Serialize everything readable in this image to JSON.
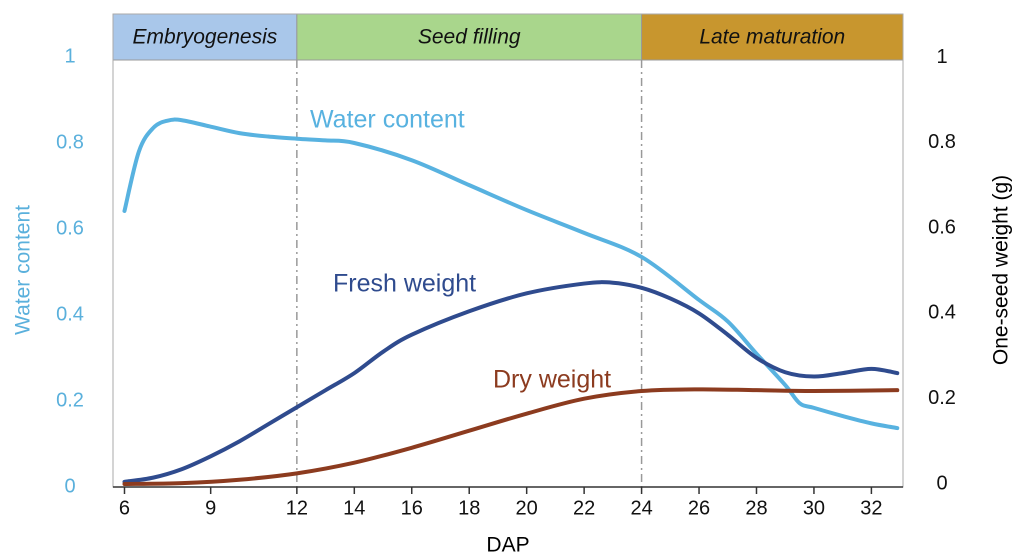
{
  "chart_data": {
    "type": "line",
    "xlabel": "DAP",
    "ylabel": "Water content",
    "y2label": "One-seed weight (g)",
    "xlim": [
      5.6,
      33.1
    ],
    "xticks": [
      6,
      9,
      12,
      14,
      16,
      18,
      20,
      22,
      24,
      26,
      28,
      30,
      32
    ],
    "ylim": [
      0,
      1.1
    ],
    "yticks": [
      0,
      0.2,
      0.4,
      0.6,
      0.8,
      1
    ],
    "y2lim": [
      -0.007,
      1.102
    ],
    "y2ticks": [
      0,
      0.2,
      0.4,
      0.6,
      0.8,
      1
    ],
    "ycolor": "#5ab0dc",
    "phases": [
      {
        "label": "Embryogenesis",
        "start": 5.6,
        "end": 12,
        "color": "#a9c7ea"
      },
      {
        "label": "Seed filling",
        "start": 12,
        "end": 24,
        "color": "#a9d68c"
      },
      {
        "label": "Late maturation",
        "start": 24,
        "end": 33.1,
        "color": "#c8962e"
      }
    ],
    "series": [
      {
        "name": "Water content",
        "color": "#58b2e0",
        "x": [
          6,
          6.5,
          7,
          7.5,
          8,
          9,
          10,
          11,
          12,
          13,
          14,
          16,
          18,
          20,
          22,
          24,
          26,
          27,
          28,
          29,
          29.5,
          30,
          31,
          32,
          32.9
        ],
        "values": [
          0.642,
          0.78,
          0.835,
          0.852,
          0.853,
          0.838,
          0.823,
          0.815,
          0.81,
          0.806,
          0.8,
          0.76,
          0.702,
          0.644,
          0.591,
          0.535,
          0.435,
          0.385,
          0.31,
          0.237,
          0.195,
          0.184,
          0.165,
          0.148,
          0.137
        ]
      },
      {
        "name": "Fresh weight",
        "color": "#2f4b8e",
        "axis": "y2",
        "x": [
          6,
          7,
          8,
          9,
          10,
          11,
          12,
          13,
          14,
          15,
          16,
          18,
          20,
          22,
          23,
          24,
          25,
          26,
          27,
          28,
          29,
          30,
          31,
          32,
          32.9
        ],
        "values": [
          0.005,
          0.015,
          0.035,
          0.065,
          0.1,
          0.14,
          0.18,
          0.22,
          0.26,
          0.31,
          0.35,
          0.405,
          0.447,
          0.47,
          0.472,
          0.46,
          0.435,
          0.4,
          0.35,
          0.296,
          0.262,
          0.252,
          0.26,
          0.27,
          0.26
        ]
      },
      {
        "name": "Dry weight",
        "color": "#8c3b1f",
        "axis": "y2",
        "x": [
          6,
          8,
          10,
          12,
          14,
          16,
          18,
          20,
          22,
          24,
          26,
          28,
          30,
          32.9
        ],
        "values": [
          0,
          0.002,
          0.01,
          0.025,
          0.05,
          0.085,
          0.125,
          0.165,
          0.2,
          0.218,
          0.222,
          0.22,
          0.218,
          0.22
        ]
      }
    ]
  }
}
